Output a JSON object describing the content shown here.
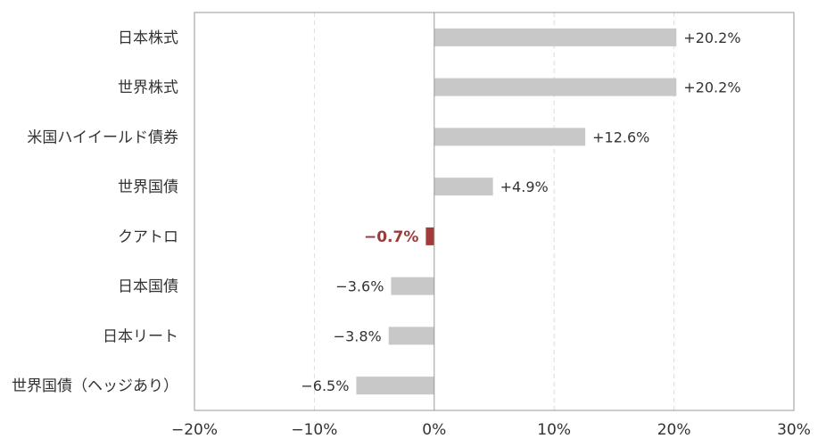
{
  "chart_data": {
    "type": "bar",
    "orientation": "horizontal",
    "categories": [
      "日本株式",
      "世界株式",
      "米国ハイイールド債券",
      "世界国債",
      "クアトロ",
      "日本国債",
      "日本リート",
      "世界国債（ヘッジあり）"
    ],
    "values": [
      20.2,
      20.2,
      12.6,
      4.9,
      -0.7,
      -3.6,
      -3.8,
      -6.5
    ],
    "value_labels": [
      "+20.2%",
      "+20.2%",
      "+12.6%",
      "+4.9%",
      "−0.7%",
      "−3.6%",
      "−3.8%",
      "−6.5%"
    ],
    "highlight_category": "クアトロ",
    "xlim": [
      -20,
      30
    ],
    "xticks": [
      -20,
      -10,
      0,
      10,
      20,
      30
    ],
    "xtick_labels": [
      "−20%",
      "−10%",
      "0%",
      "10%",
      "20%",
      "30%"
    ],
    "grid": "vertical dashed",
    "colors": {
      "bar": "#c8c8c8",
      "highlight": "#a33b3b",
      "grid": "#dcdcdc",
      "axis": "#999999"
    }
  }
}
